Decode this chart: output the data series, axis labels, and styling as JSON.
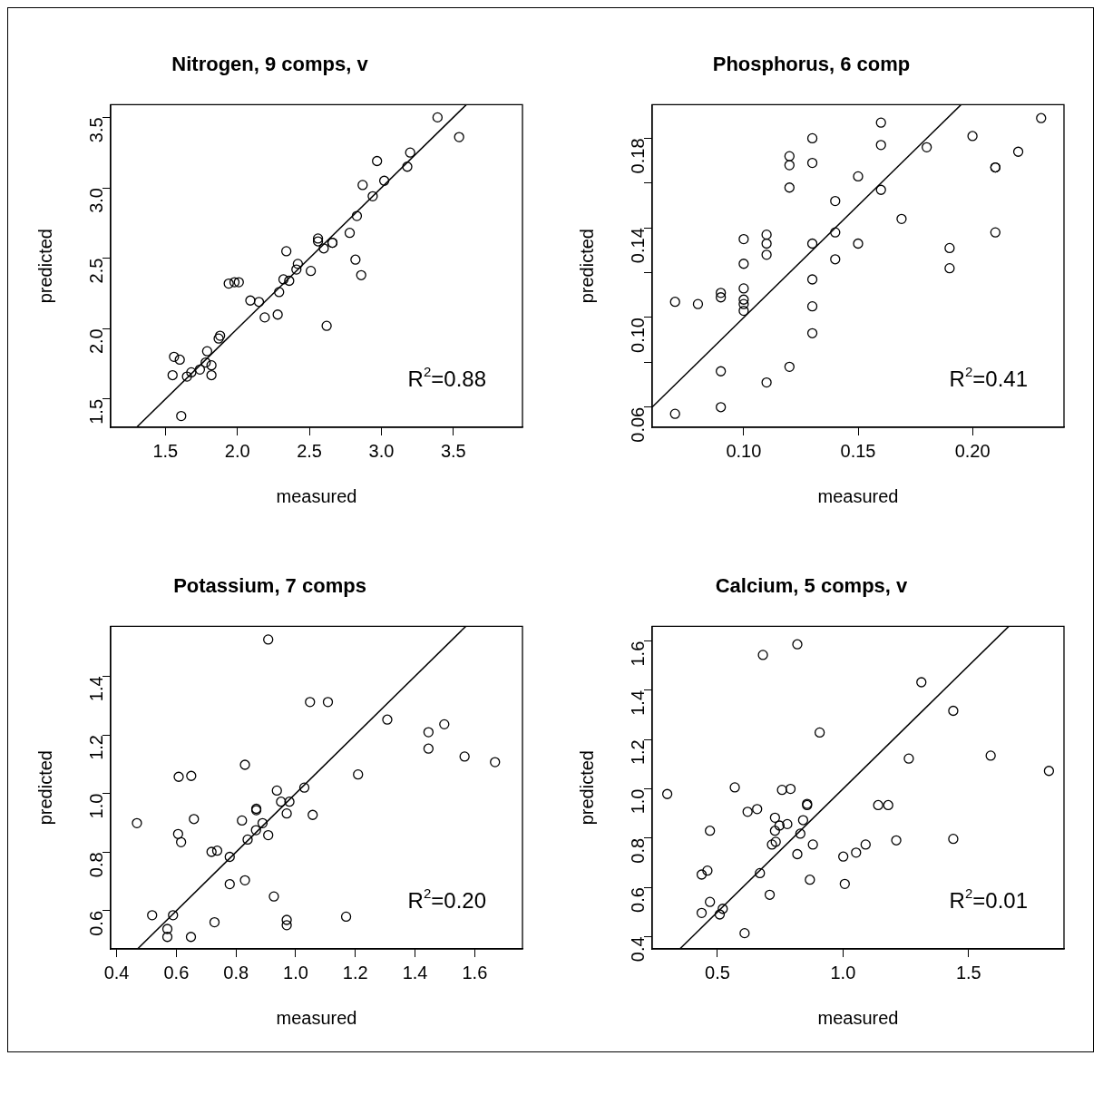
{
  "chart_data": [
    {
      "type": "scatter",
      "title": "Nitrogen, 9 comps, v",
      "xlabel": "measured",
      "ylabel": "predicted",
      "xlim": [
        1.12,
        3.98
      ],
      "ylim": [
        1.3,
        3.59
      ],
      "grid": false,
      "marker": "circle",
      "xticks": [
        {
          "value": 1.5,
          "label": "1.5"
        },
        {
          "value": 2,
          "label": "2.0"
        },
        {
          "value": 2.5,
          "label": "2.5"
        },
        {
          "value": 3,
          "label": "3.0"
        },
        {
          "value": 3.5,
          "label": "3.5"
        }
      ],
      "yticks": [
        {
          "value": 1.5,
          "label": "1.5"
        },
        {
          "value": 2,
          "label": "2.0"
        },
        {
          "value": 2.5,
          "label": "2.5"
        },
        {
          "value": 3,
          "label": "3.0"
        },
        {
          "value": 3.5,
          "label": "3.5"
        }
      ],
      "series": [
        {
          "color": "#000000",
          "x": [
            3.39,
            3.54,
            3.2,
            3.18,
            2.97,
            3.02,
            2.87,
            2.94,
            2.83,
            2.78,
            2.82,
            2.86,
            2.56,
            2.56,
            2.6,
            2.66,
            2.66,
            2.51,
            2.62,
            2.34,
            2.42,
            2.41,
            2.32,
            2.36,
            2.29,
            2.28,
            2.19,
            2.09,
            2.15,
            1.94,
            1.98,
            2.01,
            1.88,
            1.87,
            1.79,
            1.78,
            1.82,
            1.74,
            1.68,
            1.65,
            1.82,
            1.55,
            1.56,
            1.6,
            1.61
          ],
          "values": [
            3.5,
            3.36,
            3.25,
            3.15,
            3.19,
            3.05,
            3.02,
            2.94,
            2.8,
            2.68,
            2.49,
            2.38,
            2.64,
            2.62,
            2.57,
            2.61,
            2.61,
            2.41,
            2.02,
            2.55,
            2.46,
            2.42,
            2.35,
            2.34,
            2.26,
            2.1,
            2.08,
            2.2,
            2.19,
            2.32,
            2.33,
            2.33,
            1.95,
            1.93,
            1.84,
            1.76,
            1.74,
            1.71,
            1.69,
            1.66,
            1.67,
            1.67,
            1.8,
            1.78,
            1.38
          ]
        },
        {
          "type": "line",
          "color": "#000000",
          "marker": "none",
          "x": [
            1.3,
            3.59
          ],
          "values": [
            1.3,
            3.59
          ]
        }
      ],
      "annotations": [
        "R$^{2}$=0.88"
      ]
    },
    {
      "type": "scatter",
      "title": "Phosphorus, 6 comp",
      "xlabel": "measured",
      "ylabel": "predicted",
      "xlim": [
        0.06,
        0.24
      ],
      "ylim": [
        0.051,
        0.195
      ],
      "grid": false,
      "marker": "circle",
      "xticks": [
        {
          "value": 0.1,
          "label": "0.10"
        },
        {
          "value": 0.15,
          "label": "0.15"
        },
        {
          "value": 0.2,
          "label": "0.20"
        }
      ],
      "yticks": [
        {
          "value": 0.06,
          "label": "0.06"
        },
        {
          "value": 0.08,
          "label": null
        },
        {
          "value": 0.1,
          "label": "0.10"
        },
        {
          "value": 0.12,
          "label": null
        },
        {
          "value": 0.14,
          "label": "0.14"
        },
        {
          "value": 0.16,
          "label": null
        },
        {
          "value": 0.18,
          "label": "0.18"
        }
      ],
      "series": [
        {
          "color": "#000000",
          "x": [
            0.07,
            0.08,
            0.09,
            0.09,
            0.1,
            0.1,
            0.1,
            0.1,
            0.1,
            0.1,
            0.11,
            0.11,
            0.11,
            0.12,
            0.12,
            0.12,
            0.13,
            0.13,
            0.13,
            0.13,
            0.13,
            0.13,
            0.14,
            0.14,
            0.14,
            0.15,
            0.15,
            0.16,
            0.16,
            0.16,
            0.169,
            0.18,
            0.2,
            0.21,
            0.21,
            0.21,
            0.22,
            0.23,
            0.19,
            0.19,
            0.09,
            0.09,
            0.07,
            0.11,
            0.12
          ],
          "values": [
            0.107,
            0.106,
            0.111,
            0.109,
            0.135,
            0.124,
            0.113,
            0.108,
            0.106,
            0.103,
            0.137,
            0.133,
            0.128,
            0.172,
            0.168,
            0.158,
            0.18,
            0.169,
            0.133,
            0.117,
            0.105,
            0.093,
            0.152,
            0.138,
            0.126,
            0.163,
            0.133,
            0.187,
            0.177,
            0.157,
            0.144,
            0.176,
            0.181,
            0.167,
            0.167,
            0.138,
            0.174,
            0.189,
            0.131,
            0.122,
            0.076,
            0.06,
            0.057,
            0.071,
            0.078
          ]
        },
        {
          "type": "line",
          "color": "#000000",
          "marker": "none",
          "x": [
            0.06,
            0.195
          ],
          "values": [
            0.06,
            0.195
          ]
        }
      ],
      "annotations": [
        "R$^{2}$=0.41"
      ]
    },
    {
      "type": "scatter",
      "title": "Potassium, 7 comps",
      "xlabel": "measured",
      "ylabel": "predicted",
      "xlim": [
        0.38,
        1.76
      ],
      "ylim": [
        0.47,
        1.57
      ],
      "grid": false,
      "marker": "circle",
      "xticks": [
        {
          "value": 0.4,
          "label": "0.4"
        },
        {
          "value": 0.6,
          "label": "0.6"
        },
        {
          "value": 0.8,
          "label": "0.8"
        },
        {
          "value": 1,
          "label": "1.0"
        },
        {
          "value": 1.2,
          "label": "1.2"
        },
        {
          "value": 1.4,
          "label": "1.4"
        },
        {
          "value": 1.6,
          "label": "1.6"
        }
      ],
      "yticks": [
        {
          "value": 0.6,
          "label": "0.6"
        },
        {
          "value": 0.8,
          "label": "0.8"
        },
        {
          "value": 1,
          "label": "1.0"
        },
        {
          "value": 1.2,
          "label": "1.2"
        },
        {
          "value": 1.4,
          "label": "1.4"
        }
      ],
      "series": [
        {
          "color": "#000000",
          "x": [
            0.908,
            1.048,
            1.108,
            1.307,
            1.445,
            1.445,
            1.498,
            1.566,
            1.668,
            1.209,
            0.83,
            0.608,
            0.65,
            0.468,
            0.659,
            0.606,
            0.616,
            0.718,
            0.737,
            0.779,
            0.779,
            0.83,
            0.82,
            0.839,
            0.867,
            0.868,
            0.868,
            0.889,
            0.908,
            0.937,
            0.951,
            0.979,
            0.97,
            1.029,
            1.057,
            0.927,
            0.97,
            0.97,
            1.169,
            0.519,
            0.589,
            0.57,
            0.57,
            0.649,
            0.728
          ],
          "values": [
            1.525,
            1.312,
            1.312,
            1.252,
            1.209,
            1.153,
            1.236,
            1.126,
            1.107,
            1.065,
            1.098,
            1.057,
            1.06,
            0.899,
            0.913,
            0.862,
            0.834,
            0.801,
            0.805,
            0.784,
            0.691,
            0.704,
            0.908,
            0.843,
            0.875,
            0.948,
            0.943,
            0.899,
            0.858,
            1.01,
            0.972,
            0.972,
            0.932,
            1.02,
            0.927,
            0.649,
            0.569,
            0.551,
            0.58,
            0.585,
            0.585,
            0.538,
            0.511,
            0.511,
            0.561
          ]
        },
        {
          "type": "line",
          "color": "#000000",
          "marker": "none",
          "x": [
            0.47,
            1.57
          ],
          "values": [
            0.47,
            1.57
          ]
        }
      ],
      "annotations": [
        "R$^{2}$=0.20"
      ]
    },
    {
      "type": "scatter",
      "title": "Calcium, 5 comps, v",
      "xlabel": "measured",
      "ylabel": "predicted",
      "xlim": [
        0.24,
        1.88
      ],
      "ylim": [
        0.35,
        1.66
      ],
      "grid": false,
      "marker": "circle",
      "xticks": [
        {
          "value": 0.5,
          "label": "0.5"
        },
        {
          "value": 1,
          "label": "1.0"
        },
        {
          "value": 1.5,
          "label": "1.5"
        }
      ],
      "yticks": [
        {
          "value": 0.4,
          "label": "0.4"
        },
        {
          "value": 0.6,
          "label": "0.6"
        },
        {
          "value": 0.8,
          "label": "0.8"
        },
        {
          "value": 1,
          "label": "1.0"
        },
        {
          "value": 1.2,
          "label": "1.2"
        },
        {
          "value": 1.4,
          "label": "1.4"
        },
        {
          "value": 1.6,
          "label": "1.6"
        }
      ],
      "series": [
        {
          "color": "#000000",
          "x": [
            0.3,
            0.569,
            0.681,
            0.818,
            1.312,
            1.439,
            0.907,
            1.262,
            1.588,
            1.82,
            0.757,
            0.791,
            0.62,
            0.658,
            0.857,
            0.857,
            0.729,
            0.747,
            0.778,
            0.841,
            0.729,
            0.47,
            0.83,
            0.717,
            0.732,
            0.88,
            0.818,
            1.14,
            1.18,
            1.212,
            1.439,
            1.09,
            1.052,
            1.001,
            1.007,
            0.868,
            0.669,
            0.46,
            0.437,
            0.708,
            0.47,
            0.437,
            0.521,
            0.509,
            0.608
          ],
          "values": [
            0.979,
            1.006,
            1.544,
            1.587,
            1.433,
            1.317,
            1.229,
            1.123,
            1.135,
            1.073,
            0.996,
            1,
            0.907,
            0.918,
            0.939,
            0.934,
            0.883,
            0.851,
            0.857,
            0.873,
            0.83,
            0.83,
            0.818,
            0.774,
            0.785,
            0.774,
            0.735,
            0.934,
            0.934,
            0.791,
            0.797,
            0.774,
            0.741,
            0.725,
            0.614,
            0.631,
            0.658,
            0.668,
            0.652,
            0.57,
            0.541,
            0.496,
            0.513,
            0.49,
            0.414
          ]
        },
        {
          "type": "line",
          "color": "#000000",
          "marker": "none",
          "x": [
            0.35,
            1.66
          ],
          "values": [
            0.35,
            1.66
          ]
        }
      ],
      "annotations": [
        "R$^{2}$=0.01"
      ]
    }
  ]
}
